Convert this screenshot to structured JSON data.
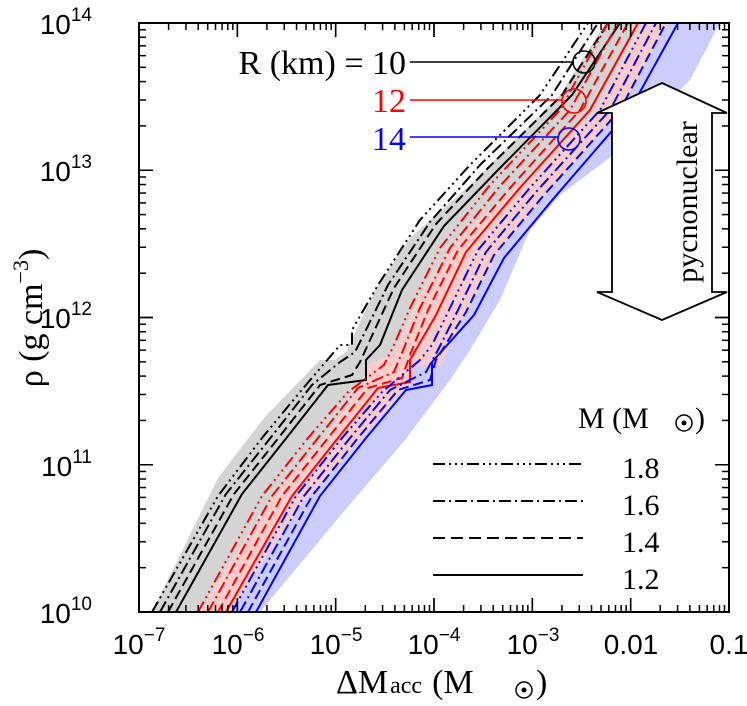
{
  "chart_data": {
    "type": "line",
    "title": "",
    "xlabel": "ΔM_acc (M_⊙)",
    "ylabel": "ρ (g cm^-3)",
    "x_scale": "log",
    "y_scale": "log",
    "xlim": [
      1e-07,
      0.1
    ],
    "ylim": [
      10000000000.0,
      100000000000000.0
    ],
    "x_tick_labels": [
      "10^-7",
      "10^-6",
      "10^-5",
      "10^-4",
      "10^-3",
      "0.01",
      "0.1"
    ],
    "y_tick_labels": [
      "10^10",
      "10^11",
      "10^12",
      "10^13",
      "10^14"
    ],
    "grid": false,
    "radius_legend": {
      "title": "R (km) = ",
      "entries": [
        {
          "label": "10",
          "color": "#000000",
          "fill": "#d9d9d9"
        },
        {
          "label": "12",
          "color": "#ff0000",
          "fill": "#ffcccc"
        },
        {
          "label": "14",
          "color": "#0000ff",
          "fill": "#ccccff"
        }
      ]
    },
    "mass_legend": {
      "title": "M (M⊙)",
      "entries": [
        {
          "label": "1.8",
          "style": "dash-dot-dot-dot"
        },
        {
          "label": "1.6",
          "style": "dash-dot"
        },
        {
          "label": "1.4",
          "style": "dashed"
        },
        {
          "label": "1.2",
          "style": "solid"
        }
      ]
    },
    "annotation": {
      "text": "pycnonuclear",
      "type": "double-arrow",
      "y_range": [
        300000000000.0,
        15000000000000.0
      ]
    },
    "series": [
      {
        "name": "R=10 km, M=1.2",
        "color": "#000000",
        "style": "solid",
        "points": [
          [
            2.3e-07,
            10000000000.0
          ],
          [
            2.2e-06,
            100000000000.0
          ],
          [
            2.1e-05,
            450000000000.0
          ],
          [
            2.1e-05,
            550000000000.0
          ],
          [
            0.0002,
            5000000000000.0
          ],
          [
            0.001,
            13000000000000.0
          ],
          [
            0.023,
            100000000000000.0
          ]
        ]
      },
      {
        "name": "R=12 km, M=1.2",
        "color": "#ff0000",
        "style": "solid",
        "points": [
          [
            3.8e-07,
            10000000000.0
          ],
          [
            3.6e-06,
            100000000000.0
          ],
          [
            4.6e-05,
            450000000000.0
          ],
          [
            4.6e-05,
            550000000000.0
          ],
          [
            0.00035,
            5000000000000.0
          ],
          [
            0.002,
            13000000000000.0
          ],
          [
            0.036,
            100000000000000.0
          ]
        ]
      },
      {
        "name": "R=14 km, M=1.2",
        "color": "#0000ff",
        "style": "solid",
        "points": [
          [
            7.5e-07,
            10000000000.0
          ],
          [
            6.5e-06,
            100000000000.0
          ],
          [
            9.5e-05,
            450000000000.0
          ],
          [
            9.5e-05,
            550000000000.0
          ],
          [
            0.0006,
            5000000000000.0
          ],
          [
            0.003,
            13000000000000.0
          ],
          [
            0.05,
            100000000000000.0
          ]
        ]
      }
    ]
  },
  "labels": {
    "r_title": "R (km) = 10",
    "r_12": "12",
    "r_14": "14",
    "m_title": "M (M",
    "m_close": ")",
    "m18": "1.8",
    "m16": "1.6",
    "m14": "1.4",
    "m12": "1.2",
    "pycno": "pycnonuclear",
    "xlabel_main": "ΔM",
    "xlabel_sub": "acc",
    "xlabel_paren": "(M",
    "xlabel_close": ")",
    "ylabel": "ρ (g cm",
    "ylabel_sup": "−3",
    "ylabel_close": ")"
  },
  "ticks": {
    "x": [
      {
        "base": "10",
        "exp": "−7"
      },
      {
        "base": "10",
        "exp": "−6"
      },
      {
        "base": "10",
        "exp": "−5"
      },
      {
        "base": "10",
        "exp": "−4"
      },
      {
        "base": "10",
        "exp": "−3"
      },
      {
        "base": "0.01",
        "exp": ""
      },
      {
        "base": "0.1",
        "exp": ""
      }
    ],
    "y": [
      {
        "base": "10",
        "exp": "10"
      },
      {
        "base": "10",
        "exp": "11"
      },
      {
        "base": "10",
        "exp": "12"
      },
      {
        "base": "10",
        "exp": "13"
      },
      {
        "base": "10",
        "exp": "14"
      }
    ]
  }
}
